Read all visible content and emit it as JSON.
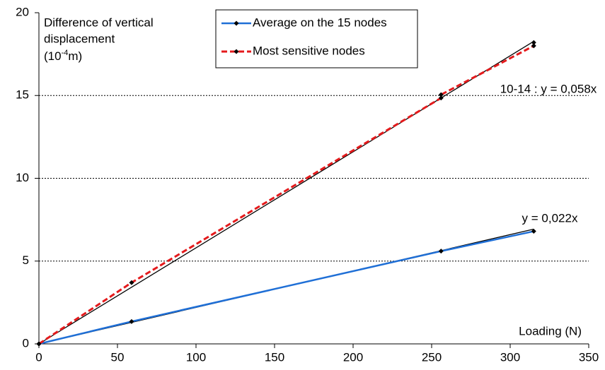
{
  "chart_data": {
    "type": "line",
    "ylabel": [
      "Difference of vertical",
      "displacement"
    ],
    "yunit": {
      "base": "(10",
      "sup": "-4",
      "rest": "m)"
    },
    "xlabel": "Loading (N)",
    "xlim": [
      0,
      350
    ],
    "xticks": [
      0,
      50,
      100,
      150,
      200,
      250,
      300,
      350
    ],
    "ylim": [
      0,
      20
    ],
    "yticks": [
      0,
      5,
      10,
      15,
      20
    ],
    "grid": true,
    "series": [
      {
        "name": "Average on the 15 nodes",
        "color": "#1f6fd6",
        "dash": false,
        "x": [
          0,
          59,
          256,
          315
        ],
        "values": [
          0,
          1.35,
          5.6,
          6.8
        ]
      },
      {
        "name": "Most sensitive nodes",
        "color": "#e41a1c",
        "dash": true,
        "x": [
          0,
          59,
          256,
          256,
          315,
          315
        ],
        "values": [
          0,
          3.7,
          14.85,
          15.05,
          18.0,
          18.2
        ]
      }
    ],
    "trendlines": [
      {
        "label": "y = 0,022x",
        "slope": 0.022,
        "series": 0
      },
      {
        "label": "10-14 : y = 0,058x",
        "slope": 0.058,
        "series": 1
      }
    ]
  }
}
